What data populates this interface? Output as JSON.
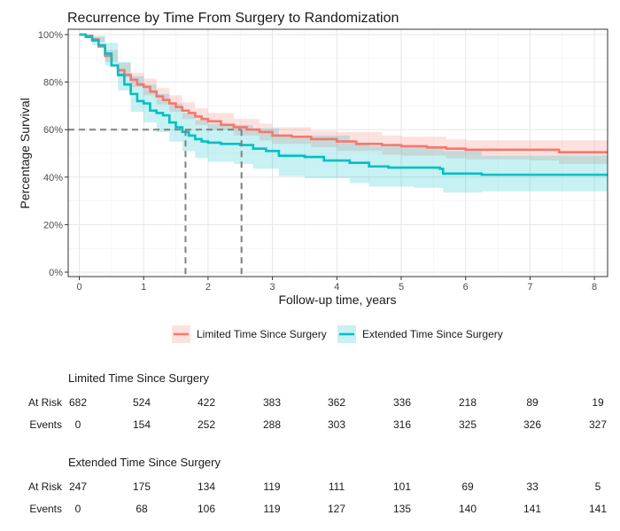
{
  "chart_data": {
    "type": "line",
    "title": "Recurrence by Time From Surgery to Randomization",
    "xlabel": "Follow-up time, years",
    "ylabel": "Percentage Survival",
    "xlim": [
      0,
      8.2
    ],
    "ylim": [
      0,
      100
    ],
    "x_ticks": [
      0,
      1,
      2,
      3,
      4,
      5,
      6,
      7,
      8
    ],
    "y_ticks": [
      0,
      20,
      40,
      60,
      80,
      100
    ],
    "y_tick_labels": [
      "0%",
      "20%",
      "40%",
      "60%",
      "80%",
      "100%"
    ],
    "grid": true,
    "legend_position": "bottom",
    "reference_lines": {
      "y_level": 60,
      "x_values": [
        1.65,
        2.52
      ]
    },
    "series": [
      {
        "name": "Limited Time Since Surgery",
        "color": "#f8766d",
        "band_color": "#f8766d",
        "points": [
          [
            0,
            100
          ],
          [
            0.1,
            99.5
          ],
          [
            0.2,
            98
          ],
          [
            0.3,
            95
          ],
          [
            0.4,
            91
          ],
          [
            0.5,
            87
          ],
          [
            0.6,
            85
          ],
          [
            0.7,
            83
          ],
          [
            0.8,
            81
          ],
          [
            0.9,
            79
          ],
          [
            1.0,
            78
          ],
          [
            1.1,
            76
          ],
          [
            1.2,
            74
          ],
          [
            1.3,
            72.5
          ],
          [
            1.4,
            71
          ],
          [
            1.5,
            69.5
          ],
          [
            1.6,
            68
          ],
          [
            1.7,
            67
          ],
          [
            1.8,
            65.5
          ],
          [
            1.9,
            64.5
          ],
          [
            2.0,
            63.5
          ],
          [
            2.2,
            62
          ],
          [
            2.4,
            61
          ],
          [
            2.6,
            60
          ],
          [
            2.8,
            59
          ],
          [
            3.0,
            57.5
          ],
          [
            3.3,
            57
          ],
          [
            3.6,
            56
          ],
          [
            4.0,
            55
          ],
          [
            4.3,
            54
          ],
          [
            4.7,
            53.5
          ],
          [
            5.0,
            53
          ],
          [
            5.4,
            52.5
          ],
          [
            5.7,
            52
          ],
          [
            6.0,
            51.5
          ],
          [
            6.4,
            51.5
          ],
          [
            7.0,
            51.5
          ],
          [
            7.4,
            51.5
          ],
          [
            7.45,
            50.5
          ],
          [
            8.2,
            50.5
          ]
        ],
        "lower": [
          [
            0,
            100
          ],
          [
            0.2,
            97
          ],
          [
            0.4,
            88.5
          ],
          [
            0.6,
            82
          ],
          [
            0.8,
            78
          ],
          [
            1.0,
            74.5
          ],
          [
            1.2,
            70.5
          ],
          [
            1.4,
            67.5
          ],
          [
            1.6,
            64.5
          ],
          [
            1.8,
            62
          ],
          [
            2.0,
            60
          ],
          [
            2.4,
            57.5
          ],
          [
            2.8,
            55.5
          ],
          [
            3.0,
            54
          ],
          [
            3.6,
            52.5
          ],
          [
            4.0,
            51
          ],
          [
            4.7,
            49.5
          ],
          [
            5.0,
            49
          ],
          [
            5.7,
            48
          ],
          [
            6.0,
            47.5
          ],
          [
            7.0,
            47
          ],
          [
            7.45,
            45.5
          ],
          [
            8.2,
            45
          ]
        ],
        "upper": [
          [
            0,
            100
          ],
          [
            0.2,
            99
          ],
          [
            0.4,
            93.5
          ],
          [
            0.6,
            88
          ],
          [
            0.8,
            84
          ],
          [
            1.0,
            81.5
          ],
          [
            1.2,
            77.5
          ],
          [
            1.4,
            74.5
          ],
          [
            1.6,
            71.5
          ],
          [
            1.8,
            69
          ],
          [
            2.0,
            67
          ],
          [
            2.4,
            64.5
          ],
          [
            2.8,
            62.5
          ],
          [
            3.0,
            61
          ],
          [
            3.6,
            59.5
          ],
          [
            4.0,
            59
          ],
          [
            4.7,
            57.5
          ],
          [
            5.0,
            57
          ],
          [
            5.7,
            56
          ],
          [
            6.0,
            55.5
          ],
          [
            7.0,
            55.5
          ],
          [
            7.45,
            55.5
          ],
          [
            8.2,
            55.5
          ]
        ]
      },
      {
        "name": "Extended Time Since Surgery",
        "color": "#00bfc4",
        "band_color": "#00bfc4",
        "points": [
          [
            0,
            100
          ],
          [
            0.1,
            99
          ],
          [
            0.2,
            97.5
          ],
          [
            0.3,
            95.5
          ],
          [
            0.4,
            92
          ],
          [
            0.5,
            87
          ],
          [
            0.6,
            83
          ],
          [
            0.7,
            79
          ],
          [
            0.8,
            75
          ],
          [
            0.9,
            72
          ],
          [
            1.0,
            71
          ],
          [
            1.1,
            68
          ],
          [
            1.2,
            67
          ],
          [
            1.3,
            66
          ],
          [
            1.4,
            63
          ],
          [
            1.5,
            61
          ],
          [
            1.6,
            59
          ],
          [
            1.7,
            57.5
          ],
          [
            1.8,
            56
          ],
          [
            1.9,
            55
          ],
          [
            2.0,
            54.5
          ],
          [
            2.2,
            54
          ],
          [
            2.4,
            54
          ],
          [
            2.5,
            53.5
          ],
          [
            2.7,
            52
          ],
          [
            2.9,
            51
          ],
          [
            3.1,
            49
          ],
          [
            3.5,
            48.5
          ],
          [
            3.8,
            47
          ],
          [
            4.2,
            46
          ],
          [
            4.5,
            44.5
          ],
          [
            4.8,
            44
          ],
          [
            5.2,
            44
          ],
          [
            5.5,
            44
          ],
          [
            5.6,
            43.5
          ],
          [
            5.65,
            41.5
          ],
          [
            6.2,
            41.5
          ],
          [
            6.25,
            41
          ],
          [
            8.2,
            41
          ]
        ],
        "lower": [
          [
            0,
            100
          ],
          [
            0.2,
            95.5
          ],
          [
            0.4,
            87
          ],
          [
            0.6,
            76.5
          ],
          [
            0.8,
            67.5
          ],
          [
            1.0,
            63
          ],
          [
            1.2,
            59
          ],
          [
            1.4,
            55
          ],
          [
            1.6,
            51
          ],
          [
            1.8,
            48
          ],
          [
            2.0,
            46.5
          ],
          [
            2.4,
            45.5
          ],
          [
            2.7,
            43.5
          ],
          [
            3.1,
            40.5
          ],
          [
            3.5,
            39.5
          ],
          [
            4.2,
            37.5
          ],
          [
            4.5,
            36
          ],
          [
            5.2,
            35.5
          ],
          [
            5.65,
            33.5
          ],
          [
            6.25,
            34
          ],
          [
            8.2,
            35
          ]
        ],
        "upper": [
          [
            0,
            100
          ],
          [
            0.2,
            99.5
          ],
          [
            0.4,
            96.5
          ],
          [
            0.6,
            88.5
          ],
          [
            0.8,
            82.5
          ],
          [
            1.0,
            79
          ],
          [
            1.2,
            75
          ],
          [
            1.4,
            71
          ],
          [
            1.6,
            67
          ],
          [
            1.8,
            64
          ],
          [
            2.0,
            62.5
          ],
          [
            2.4,
            62
          ],
          [
            2.7,
            60.5
          ],
          [
            3.1,
            57.5
          ],
          [
            3.5,
            57.5
          ],
          [
            4.2,
            54.5
          ],
          [
            4.5,
            53
          ],
          [
            5.2,
            52.5
          ],
          [
            5.65,
            51
          ],
          [
            6.25,
            49
          ],
          [
            8.2,
            47.5
          ]
        ]
      }
    ]
  },
  "risk_table": {
    "row_labels": {
      "at_risk": "At Risk",
      "events": "Events"
    },
    "groups": [
      {
        "title": "Limited Time Since Surgery",
        "at_risk": [
          "682",
          "524",
          "422",
          "383",
          "362",
          "336",
          "218",
          "89",
          "19"
        ],
        "events": [
          "0",
          "154",
          "252",
          "288",
          "303",
          "316",
          "325",
          "326",
          "327"
        ]
      },
      {
        "title": "Extended Time Since Surgery",
        "at_risk": [
          "247",
          "175",
          "134",
          "119",
          "111",
          "101",
          "69",
          "33",
          "5"
        ],
        "events": [
          "0",
          "68",
          "106",
          "119",
          "127",
          "135",
          "140",
          "141",
          "141"
        ]
      }
    ]
  }
}
